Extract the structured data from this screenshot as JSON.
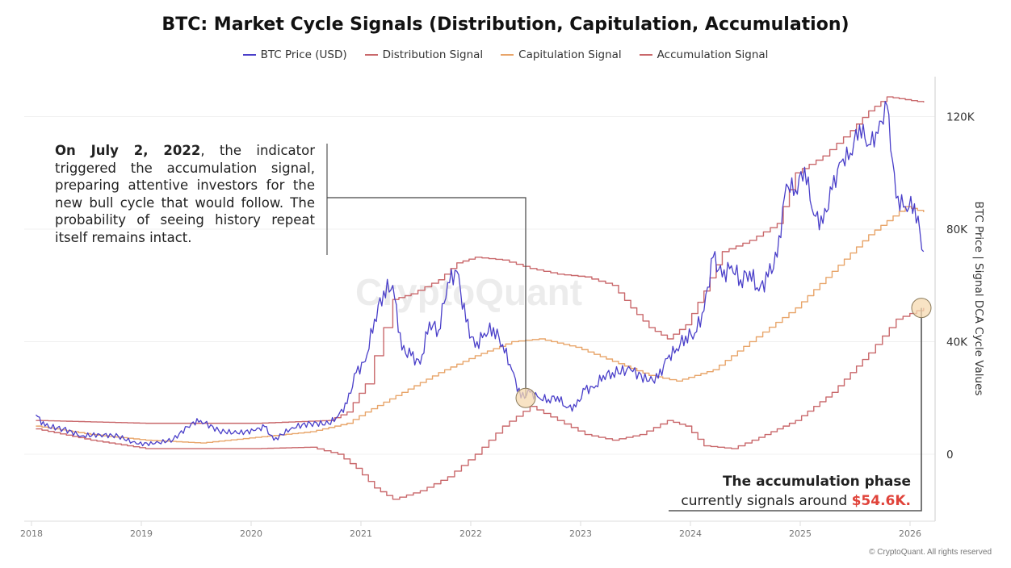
{
  "chart_data": {
    "type": "line",
    "title": "BTC: Market Cycle Signals (Distribution, Capitulation, Accumulation)",
    "ylabel": "BTC Price | Signal DCA Cycle Values",
    "xlabel": "",
    "x_ticks": [
      "2018",
      "2019",
      "2020",
      "2021",
      "2022",
      "2023",
      "2024",
      "2025",
      "2026"
    ],
    "y_ticks": [
      "0",
      "40K",
      "80K",
      "120K"
    ],
    "y_tick_values": [
      0,
      40000,
      80000,
      120000
    ],
    "ylim": [
      -25000,
      140000
    ],
    "xlim": [
      "2017-12",
      "2026-04"
    ],
    "y_axis_side": "right",
    "grid": true,
    "legend_position": "top",
    "series": [
      {
        "name": "BTC Price (USD)",
        "color": "#4a3fc9",
        "style": "line",
        "points": [
          [
            "2018-01",
            14000
          ],
          [
            "2018-02",
            10000
          ],
          [
            "2018-04",
            9000
          ],
          [
            "2018-06",
            6500
          ],
          [
            "2018-08",
            7000
          ],
          [
            "2018-10",
            6400
          ],
          [
            "2018-12",
            3700
          ],
          [
            "2019-02",
            3800
          ],
          [
            "2019-04",
            5200
          ],
          [
            "2019-06",
            11000
          ],
          [
            "2019-07",
            12000
          ],
          [
            "2019-09",
            8300
          ],
          [
            "2019-11",
            7500
          ],
          [
            "2020-01",
            8500
          ],
          [
            "2020-02",
            9800
          ],
          [
            "2020-03",
            5000
          ],
          [
            "2020-05",
            9500
          ],
          [
            "2020-07",
            11000
          ],
          [
            "2020-09",
            10800
          ],
          [
            "2020-10",
            13500
          ],
          [
            "2020-11",
            18000
          ],
          [
            "2020-12",
            29000
          ],
          [
            "2021-01",
            33000
          ],
          [
            "2021-02",
            48000
          ],
          [
            "2021-03",
            58000
          ],
          [
            "2021-04",
            60000
          ],
          [
            "2021-05",
            37000
          ],
          [
            "2021-06",
            35000
          ],
          [
            "2021-07",
            32000
          ],
          [
            "2021-08",
            47000
          ],
          [
            "2021-09",
            44000
          ],
          [
            "2021-10",
            61000
          ],
          [
            "2021-11",
            65000
          ],
          [
            "2021-12",
            47000
          ],
          [
            "2022-01",
            38000
          ],
          [
            "2022-02",
            43000
          ],
          [
            "2022-03",
            45000
          ],
          [
            "2022-04",
            39000
          ],
          [
            "2022-05",
            30000
          ],
          [
            "2022-06",
            20000
          ],
          [
            "2022-07",
            22000
          ],
          [
            "2022-08",
            20000
          ],
          [
            "2022-09",
            19500
          ],
          [
            "2022-10",
            20500
          ],
          [
            "2022-11",
            16500
          ],
          [
            "2022-12",
            16800
          ],
          [
            "2023-01",
            23000
          ],
          [
            "2023-02",
            23500
          ],
          [
            "2023-03",
            28000
          ],
          [
            "2023-04",
            29000
          ],
          [
            "2023-06",
            30000
          ],
          [
            "2023-08",
            26000
          ],
          [
            "2023-09",
            27000
          ],
          [
            "2023-10",
            34000
          ],
          [
            "2023-11",
            37500
          ],
          [
            "2023-12",
            42000
          ],
          [
            "2024-01",
            43000
          ],
          [
            "2024-02",
            51000
          ],
          [
            "2024-03",
            70000
          ],
          [
            "2024-04",
            63000
          ],
          [
            "2024-05",
            67000
          ],
          [
            "2024-06",
            62000
          ],
          [
            "2024-07",
            65000
          ],
          [
            "2024-08",
            58000
          ],
          [
            "2024-09",
            63000
          ],
          [
            "2024-10",
            70000
          ],
          [
            "2024-11",
            96000
          ],
          [
            "2024-12",
            94000
          ],
          [
            "2025-01",
            102000
          ],
          [
            "2025-02",
            85000
          ],
          [
            "2025-03",
            82000
          ],
          [
            "2025-04",
            94000
          ],
          [
            "2025-05",
            104000
          ],
          [
            "2025-06",
            107000
          ],
          [
            "2025-07",
            117000
          ],
          [
            "2025-08",
            110000
          ],
          [
            "2025-09",
            114000
          ],
          [
            "2025-10",
            124000
          ],
          [
            "2025-11",
            91000
          ],
          [
            "2025-12",
            88000
          ],
          [
            "2026-01",
            89000
          ],
          [
            "2026-02",
            72000
          ]
        ]
      },
      {
        "name": "Distribution Signal",
        "color": "#c9686b",
        "style": "step",
        "points": [
          [
            "2018-01",
            12000
          ],
          [
            "2018-07",
            11500
          ],
          [
            "2019-01",
            11000
          ],
          [
            "2020-01",
            11000
          ],
          [
            "2020-09",
            12000
          ],
          [
            "2020-11",
            15000
          ],
          [
            "2021-01",
            25000
          ],
          [
            "2021-02",
            35000
          ],
          [
            "2021-03",
            45000
          ],
          [
            "2021-04",
            55000
          ],
          [
            "2021-06",
            57000
          ],
          [
            "2021-09",
            62000
          ],
          [
            "2021-11",
            68000
          ],
          [
            "2022-01",
            70000
          ],
          [
            "2022-04",
            69000
          ],
          [
            "2022-07",
            66000
          ],
          [
            "2022-10",
            64000
          ],
          [
            "2023-01",
            63000
          ],
          [
            "2023-04",
            60000
          ],
          [
            "2023-06",
            52000
          ],
          [
            "2023-08",
            45000
          ],
          [
            "2023-10",
            41000
          ],
          [
            "2023-12",
            46000
          ],
          [
            "2024-02",
            58000
          ],
          [
            "2024-04",
            72000
          ],
          [
            "2024-07",
            76000
          ],
          [
            "2024-10",
            82000
          ],
          [
            "2024-12",
            100000
          ],
          [
            "2025-03",
            106000
          ],
          [
            "2025-06",
            115000
          ],
          [
            "2025-08",
            122000
          ],
          [
            "2025-10",
            127000
          ],
          [
            "2026-02",
            125000
          ]
        ]
      },
      {
        "name": "Capitulation Signal",
        "color": "#e8a56a",
        "style": "step",
        "points": [
          [
            "2018-01",
            10000
          ],
          [
            "2018-07",
            7000
          ],
          [
            "2019-01",
            5000
          ],
          [
            "2019-07",
            4000
          ],
          [
            "2020-01",
            6000
          ],
          [
            "2020-07",
            8000
          ],
          [
            "2020-11",
            11000
          ],
          [
            "2021-01",
            15000
          ],
          [
            "2021-05",
            22000
          ],
          [
            "2021-09",
            29000
          ],
          [
            "2022-01",
            35000
          ],
          [
            "2022-05",
            40000
          ],
          [
            "2022-08",
            41000
          ],
          [
            "2022-12",
            38000
          ],
          [
            "2023-04",
            33000
          ],
          [
            "2023-08",
            28000
          ],
          [
            "2023-11",
            26000
          ],
          [
            "2024-03",
            30000
          ],
          [
            "2024-07",
            40000
          ],
          [
            "2024-12",
            52000
          ],
          [
            "2025-04",
            65000
          ],
          [
            "2025-08",
            78000
          ],
          [
            "2025-12",
            88000
          ],
          [
            "2026-02",
            86000
          ]
        ]
      },
      {
        "name": "Accumulation Signal",
        "color": "#c9686b",
        "style": "step",
        "points": [
          [
            "2018-01",
            9000
          ],
          [
            "2018-07",
            5000
          ],
          [
            "2019-01",
            2000
          ],
          [
            "2020-01",
            2000
          ],
          [
            "2020-07",
            2500
          ],
          [
            "2020-10",
            0
          ],
          [
            "2020-12",
            -5000
          ],
          [
            "2021-02",
            -12000
          ],
          [
            "2021-04",
            -16000
          ],
          [
            "2021-07",
            -13000
          ],
          [
            "2021-10",
            -8000
          ],
          [
            "2022-01",
            0
          ],
          [
            "2022-04",
            10000
          ],
          [
            "2022-07",
            17000
          ],
          [
            "2022-10",
            12000
          ],
          [
            "2023-01",
            7000
          ],
          [
            "2023-04",
            5000
          ],
          [
            "2023-07",
            7000
          ],
          [
            "2023-10",
            12000
          ],
          [
            "2023-12",
            10000
          ],
          [
            "2024-02",
            3000
          ],
          [
            "2024-05",
            2000
          ],
          [
            "2024-08",
            6000
          ],
          [
            "2024-12",
            12000
          ],
          [
            "2025-04",
            22000
          ],
          [
            "2025-08",
            36000
          ],
          [
            "2025-11",
            48000
          ],
          [
            "2026-02",
            52000
          ]
        ]
      }
    ],
    "highlights": [
      {
        "x": "2022-07",
        "y": 20000,
        "color": "#f6d9b0"
      },
      {
        "x": "2026-02",
        "y": 52000,
        "color": "#f6d9b0"
      }
    ]
  },
  "annotations": {
    "july_bold": "On July 2, 2022",
    "july_rest": ", the indicator triggered the accumulation signal, preparing attentive investors for the new bull cycle that would follow. The probability of seeing history repeat itself remains intact.",
    "phase_title": "The accumulation phase",
    "phase_text": "currently signals around ",
    "phase_value": "$54.6K.",
    "phase_value_color": "#e0433a"
  },
  "watermark": "CryptoQuant",
  "copyright": "© CryptoQuant. All rights reserved"
}
